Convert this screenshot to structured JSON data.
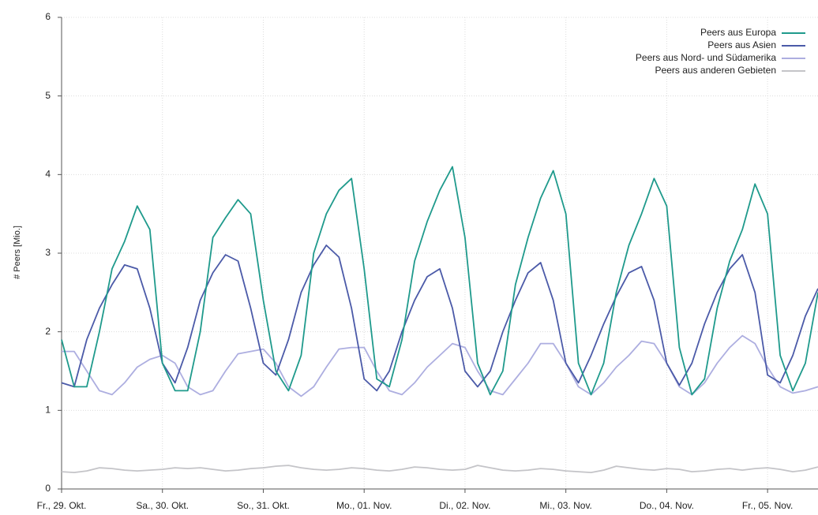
{
  "chart_data": {
    "type": "line",
    "y_label": "# Peers [Mio.]",
    "x": [
      0,
      0.125,
      0.25,
      0.375,
      0.5,
      0.625,
      0.75,
      0.875,
      1,
      1.125,
      1.25,
      1.375,
      1.5,
      1.625,
      1.75,
      1.875,
      2,
      2.125,
      2.25,
      2.375,
      2.5,
      2.625,
      2.75,
      2.875,
      3,
      3.125,
      3.25,
      3.375,
      3.5,
      3.625,
      3.75,
      3.875,
      4,
      4.125,
      4.25,
      4.375,
      4.5,
      4.625,
      4.75,
      4.875,
      5,
      5.125,
      5.25,
      5.375,
      5.5,
      5.625,
      5.75,
      5.875,
      6,
      6.125,
      6.25,
      6.375,
      6.5,
      6.625,
      6.75,
      6.875,
      7,
      7.125,
      7.25,
      7.375,
      7.5
    ],
    "xlim": [
      0,
      7.5
    ],
    "xticks": [
      {
        "value": 0,
        "label": "Fr., 29. Okt."
      },
      {
        "value": 1,
        "label": "Sa., 30. Okt."
      },
      {
        "value": 2,
        "label": "So., 31. Okt."
      },
      {
        "value": 3,
        "label": "Mo., 01. Nov."
      },
      {
        "value": 4,
        "label": "Di., 02. Nov."
      },
      {
        "value": 5,
        "label": "Mi., 03. Nov."
      },
      {
        "value": 6,
        "label": "Do., 04. Nov."
      },
      {
        "value": 7,
        "label": "Fr., 05. Nov."
      }
    ],
    "ylim": [
      0,
      6
    ],
    "yticks": [
      0,
      1,
      2,
      3,
      4,
      5,
      6
    ],
    "grid": true,
    "legend": "top-right",
    "series": [
      {
        "name": "Peers aus Europa",
        "color": "#1f9a8c",
        "values": [
          1.9,
          1.3,
          1.3,
          2.0,
          2.8,
          3.15,
          3.6,
          3.3,
          1.6,
          1.25,
          1.25,
          2.0,
          3.2,
          3.45,
          3.68,
          3.5,
          2.4,
          1.5,
          1.25,
          1.7,
          3.0,
          3.5,
          3.8,
          3.95,
          2.8,
          1.4,
          1.3,
          1.9,
          2.9,
          3.4,
          3.8,
          4.1,
          3.2,
          1.6,
          1.2,
          1.5,
          2.6,
          3.2,
          3.7,
          4.05,
          3.5,
          1.6,
          1.2,
          1.6,
          2.5,
          3.1,
          3.5,
          3.95,
          3.6,
          1.8,
          1.2,
          1.4,
          2.3,
          2.9,
          3.3,
          3.88,
          3.5,
          1.7,
          1.25,
          1.6,
          2.5
        ]
      },
      {
        "name": "Peers aus Asien",
        "color": "#4b5aa8",
        "values": [
          1.35,
          1.3,
          1.9,
          2.3,
          2.6,
          2.85,
          2.8,
          2.3,
          1.6,
          1.35,
          1.8,
          2.4,
          2.75,
          2.98,
          2.9,
          2.3,
          1.6,
          1.45,
          1.9,
          2.5,
          2.85,
          3.1,
          2.95,
          2.3,
          1.4,
          1.25,
          1.5,
          2.0,
          2.4,
          2.7,
          2.8,
          2.3,
          1.5,
          1.3,
          1.5,
          2.0,
          2.4,
          2.75,
          2.88,
          2.4,
          1.6,
          1.35,
          1.7,
          2.1,
          2.45,
          2.75,
          2.83,
          2.4,
          1.6,
          1.32,
          1.6,
          2.1,
          2.5,
          2.8,
          2.98,
          2.5,
          1.45,
          1.35,
          1.7,
          2.2,
          2.55
        ]
      },
      {
        "name": "Peers aus Nord- und Südamerika",
        "color": "#adaee0",
        "values": [
          1.75,
          1.75,
          1.5,
          1.25,
          1.2,
          1.35,
          1.55,
          1.65,
          1.7,
          1.6,
          1.3,
          1.2,
          1.25,
          1.5,
          1.72,
          1.75,
          1.78,
          1.6,
          1.3,
          1.18,
          1.3,
          1.55,
          1.78,
          1.8,
          1.8,
          1.5,
          1.25,
          1.2,
          1.35,
          1.55,
          1.7,
          1.85,
          1.8,
          1.5,
          1.25,
          1.2,
          1.4,
          1.6,
          1.85,
          1.85,
          1.6,
          1.3,
          1.2,
          1.35,
          1.55,
          1.7,
          1.88,
          1.85,
          1.6,
          1.3,
          1.2,
          1.35,
          1.6,
          1.8,
          1.95,
          1.85,
          1.55,
          1.3,
          1.22,
          1.25,
          1.3
        ]
      },
      {
        "name": "Peers aus anderen Gebieten",
        "color": "#c4c4c8",
        "values": [
          0.22,
          0.21,
          0.23,
          0.27,
          0.26,
          0.24,
          0.23,
          0.24,
          0.25,
          0.27,
          0.26,
          0.27,
          0.25,
          0.23,
          0.24,
          0.26,
          0.27,
          0.29,
          0.3,
          0.27,
          0.25,
          0.24,
          0.25,
          0.27,
          0.26,
          0.24,
          0.23,
          0.25,
          0.28,
          0.27,
          0.25,
          0.24,
          0.25,
          0.3,
          0.27,
          0.24,
          0.23,
          0.24,
          0.26,
          0.25,
          0.23,
          0.22,
          0.21,
          0.24,
          0.29,
          0.27,
          0.25,
          0.24,
          0.26,
          0.25,
          0.22,
          0.23,
          0.25,
          0.26,
          0.24,
          0.26,
          0.27,
          0.25,
          0.22,
          0.24,
          0.28
        ]
      }
    ]
  }
}
